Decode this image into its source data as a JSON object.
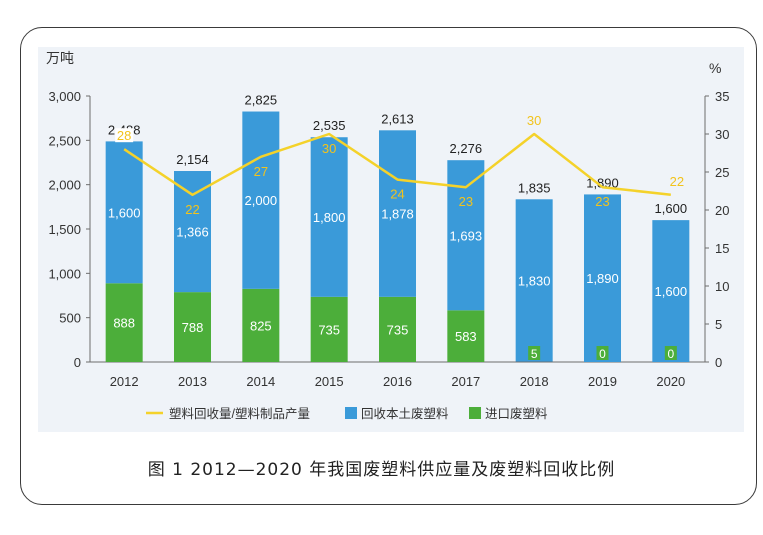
{
  "chart_data": {
    "type": "bar",
    "title": "图 1  2012—2020 年我国废塑料供应量及废塑料回收比例",
    "ylabel": "万吨",
    "y2label": "%",
    "ylim": [
      0,
      3000
    ],
    "y2lim": [
      0,
      35
    ],
    "yticks": [
      "0",
      "500",
      "1,000",
      "1,500",
      "2,000",
      "2,500",
      "3,000"
    ],
    "y2ticks": [
      "0",
      "5",
      "10",
      "15",
      "20",
      "25",
      "30",
      "35"
    ],
    "categories": [
      "2012",
      "2013",
      "2014",
      "2015",
      "2016",
      "2017",
      "2018",
      "2019",
      "2020"
    ],
    "stack_totals": [
      "2,488",
      "2,154",
      "2,825",
      "2,535",
      "2,613",
      "2,276",
      "1,835",
      "1,890",
      "1,600"
    ],
    "series": [
      {
        "name": "回收本土废塑料",
        "type": "bar",
        "color": "#3a9ad9",
        "values": [
          1600,
          1366,
          2000,
          1800,
          1878,
          1693,
          1830,
          1890,
          1600
        ],
        "labels": [
          "1,600",
          "1,366",
          "2,000",
          "1,800",
          "1,878",
          "1,693",
          "1,830",
          "1,890",
          "1,600"
        ]
      },
      {
        "name": "进口废塑料",
        "type": "bar",
        "color": "#4cae3a",
        "values": [
          888,
          788,
          825,
          735,
          735,
          583,
          5,
          0,
          0
        ],
        "labels": [
          "888",
          "788",
          "825",
          "735",
          "735",
          "583",
          "5",
          "0",
          "0"
        ]
      },
      {
        "name": "塑料回收量/塑料制品产量",
        "type": "line",
        "axis": "right",
        "color": "#f4d22a",
        "values": [
          28,
          22,
          27,
          30,
          24,
          23,
          30,
          23,
          22
        ],
        "labels": [
          "28",
          "22",
          "27",
          "30",
          "24",
          "23",
          "30",
          "23",
          "22"
        ]
      }
    ],
    "legend": [
      "塑料回收量/塑料制品产量",
      "回收本土废塑料",
      "进口废塑料"
    ],
    "legend_position": "bottom",
    "grid": false
  }
}
